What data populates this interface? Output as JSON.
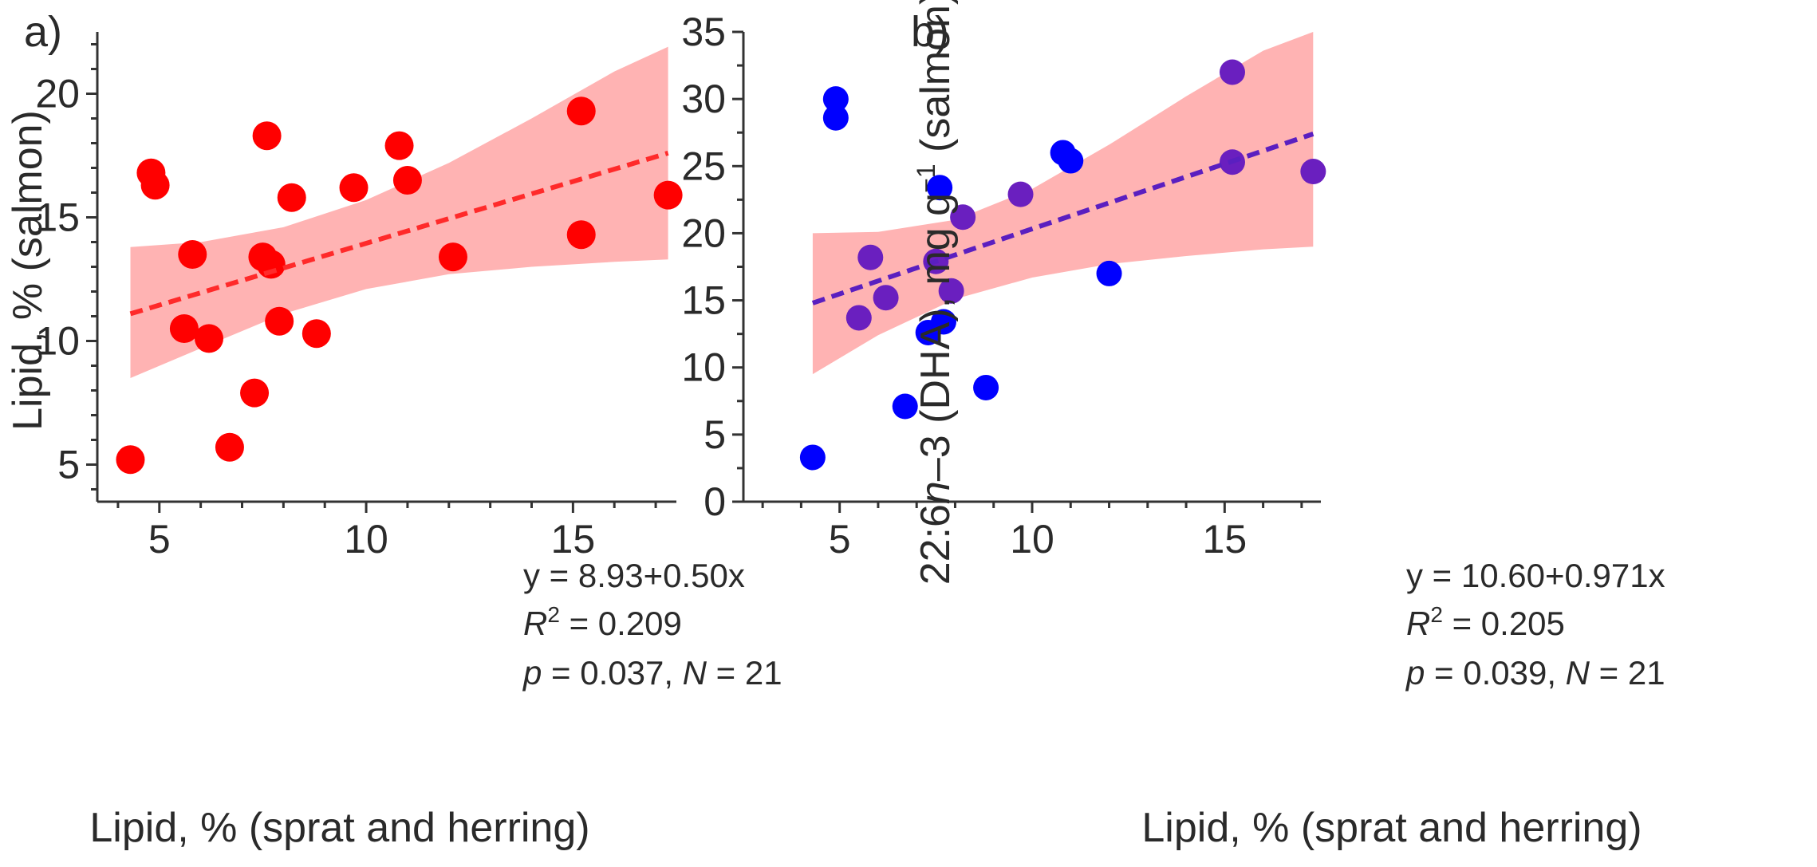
{
  "chart_data": [
    {
      "type": "scatter",
      "panel_label": "a)",
      "xlabel": "Lipid, % (sprat and herring)",
      "ylabel": "Lipid, % (salmon)",
      "xlim": [
        3.5,
        17.5
      ],
      "ylim": [
        3.5,
        22.5
      ],
      "xticks": [
        5,
        10,
        15
      ],
      "yticks": [
        5,
        10,
        15,
        20
      ],
      "point_color": "#ff0000",
      "line_color": "#ff2a2a",
      "band_color": "#ffb3b3",
      "points": [
        {
          "x": 4.3,
          "y": 5.2
        },
        {
          "x": 4.8,
          "y": 16.8
        },
        {
          "x": 4.9,
          "y": 16.3
        },
        {
          "x": 5.6,
          "y": 10.5
        },
        {
          "x": 5.8,
          "y": 13.5
        },
        {
          "x": 6.2,
          "y": 10.1
        },
        {
          "x": 6.7,
          "y": 5.7
        },
        {
          "x": 7.3,
          "y": 7.9
        },
        {
          "x": 7.5,
          "y": 13.4
        },
        {
          "x": 7.6,
          "y": 18.3
        },
        {
          "x": 7.7,
          "y": 13.1
        },
        {
          "x": 7.9,
          "y": 10.8
        },
        {
          "x": 8.2,
          "y": 15.8
        },
        {
          "x": 8.8,
          "y": 10.3
        },
        {
          "x": 9.7,
          "y": 16.2
        },
        {
          "x": 10.8,
          "y": 17.9
        },
        {
          "x": 11.0,
          "y": 16.5
        },
        {
          "x": 12.1,
          "y": 13.4
        },
        {
          "x": 15.2,
          "y": 19.3
        },
        {
          "x": 15.2,
          "y": 14.3
        },
        {
          "x": 17.3,
          "y": 15.9
        }
      ],
      "fit": {
        "x_range": [
          4.3,
          17.3
        ],
        "y_start": 11.1,
        "y_end": 17.6
      },
      "confidence_band": {
        "x": [
          4.3,
          6,
          8,
          10,
          12,
          14,
          16,
          17.3
        ],
        "upper": [
          13.8,
          14.0,
          14.6,
          15.7,
          17.2,
          19.0,
          20.9,
          21.9
        ],
        "lower": [
          8.5,
          9.7,
          11.1,
          12.1,
          12.7,
          13.0,
          13.2,
          13.3
        ]
      },
      "annotations": {
        "equation": "y = 8.93+0.50x",
        "r2_symbol": "R",
        "r2_sup": "2",
        "r2_value": " = 0.209",
        "p_symbol": "p",
        "p_value": " = 0.037, ",
        "n_symbol": "N",
        "n_value": " = 21"
      }
    },
    {
      "type": "scatter",
      "panel_label": "b)",
      "xlabel": "Lipid, % (sprat and herring)",
      "ylabel_parts": [
        "22:6",
        "n",
        "–3 (DHA), mg g",
        "−1",
        " (salmon)"
      ],
      "xlim": [
        2.5,
        17.5
      ],
      "ylim": [
        0,
        35
      ],
      "xticks": [
        5,
        10,
        15
      ],
      "yticks": [
        0,
        5,
        10,
        15,
        20,
        25,
        30,
        35
      ],
      "point_color": "#0000ff",
      "point_in_band_color": "#6a1fbf",
      "line_color": "#5a1fc0",
      "band_color": "#ffb3b3",
      "points": [
        {
          "x": 4.3,
          "y": 3.3
        },
        {
          "x": 4.9,
          "y": 30.0
        },
        {
          "x": 4.9,
          "y": 28.6
        },
        {
          "x": 5.5,
          "y": 13.7
        },
        {
          "x": 5.8,
          "y": 18.2
        },
        {
          "x": 6.2,
          "y": 15.2
        },
        {
          "x": 6.7,
          "y": 7.1
        },
        {
          "x": 7.3,
          "y": 12.6
        },
        {
          "x": 7.5,
          "y": 17.9
        },
        {
          "x": 7.6,
          "y": 23.4
        },
        {
          "x": 7.7,
          "y": 13.4
        },
        {
          "x": 7.9,
          "y": 15.7
        },
        {
          "x": 8.2,
          "y": 21.2
        },
        {
          "x": 8.8,
          "y": 8.5
        },
        {
          "x": 9.7,
          "y": 22.9
        },
        {
          "x": 10.8,
          "y": 26.0
        },
        {
          "x": 11.0,
          "y": 25.4
        },
        {
          "x": 12.0,
          "y": 17.0
        },
        {
          "x": 15.2,
          "y": 32.0
        },
        {
          "x": 15.2,
          "y": 25.3
        },
        {
          "x": 17.3,
          "y": 24.6
        }
      ],
      "fit": {
        "x_range": [
          4.3,
          17.3
        ],
        "y_start": 14.8,
        "y_end": 27.4
      },
      "confidence_band": {
        "x": [
          4.3,
          6,
          8,
          10,
          12,
          14,
          16,
          17.3
        ],
        "upper": [
          20.0,
          20.1,
          21.0,
          23.3,
          26.6,
          30.2,
          33.6,
          35.0
        ],
        "lower": [
          9.5,
          12.4,
          15.1,
          16.7,
          17.7,
          18.3,
          18.8,
          19.0
        ]
      },
      "annotations": {
        "equation": "y = 10.60+0.971x",
        "r2_symbol": "R",
        "r2_sup": "2",
        "r2_value": " = 0.205",
        "p_symbol": "p",
        "p_value": " = 0.039, ",
        "n_symbol": "N",
        "n_value": " = 21"
      }
    }
  ]
}
